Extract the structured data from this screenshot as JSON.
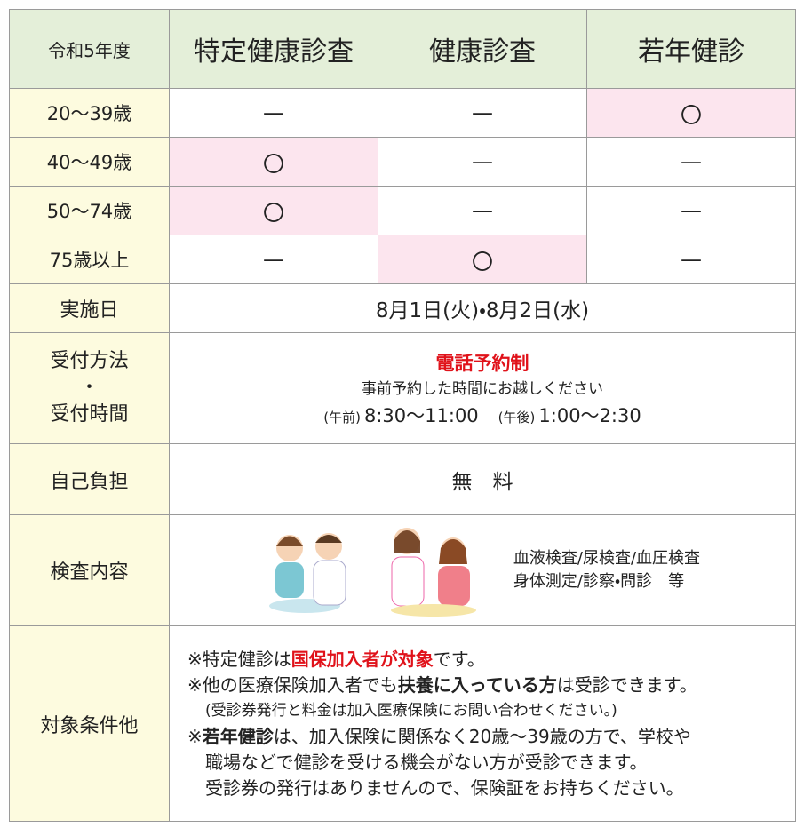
{
  "table": {
    "header": [
      "令和5年度",
      "特定健康診査",
      "健康診査",
      "若年健診"
    ],
    "age_rows": [
      {
        "label": "20〜39歳",
        "cells": [
          "—",
          "—",
          "〇"
        ],
        "highlight": [
          false,
          false,
          true
        ]
      },
      {
        "label": "40〜49歳",
        "cells": [
          "〇",
          "—",
          "—"
        ],
        "highlight": [
          true,
          false,
          false
        ]
      },
      {
        "label": "50〜74歳",
        "cells": [
          "〇",
          "—",
          "—"
        ],
        "highlight": [
          true,
          false,
          false
        ]
      },
      {
        "label": "75歳以上",
        "cells": [
          "—",
          "〇",
          "—"
        ],
        "highlight": [
          false,
          true,
          false
        ]
      }
    ],
    "date": {
      "label": "実施日",
      "text": "8月1日(火)・8月2日(水)"
    },
    "reception": {
      "label": [
        "受付方法",
        "・",
        "受付時間"
      ],
      "title": "電話予約制",
      "note": "事前予約した時間にお越しください",
      "times": [
        {
          "tag": "(午前)",
          "time": "8:30〜11:00"
        },
        {
          "tag": "(午後)",
          "time": "1:00〜2:30"
        }
      ]
    },
    "cost": {
      "label": "自己負担",
      "text": "無　料"
    },
    "exam": {
      "label": "検査内容",
      "items": [
        "血液検査/尿検査/血圧検査",
        "身体測定/診察・問診　等"
      ]
    },
    "conditions": {
      "label": "対象条件他",
      "lines": [
        {
          "parts": [
            {
              "text": "※特定健診は"
            },
            {
              "text": "国保加入者が対象",
              "style": "red"
            },
            {
              "text": "です。"
            }
          ]
        },
        {
          "parts": [
            {
              "text": "※他の医療保険加入者でも"
            },
            {
              "text": "扶養に入っている方",
              "style": "bold"
            },
            {
              "text": "は受診できます。"
            }
          ]
        },
        {
          "parts": [
            {
              "text": "(受診券発行と料金は加入医療保険にお問い合わせください。)"
            }
          ],
          "indent": true,
          "small": true
        },
        {
          "parts": [
            {
              "text": "※"
            },
            {
              "text": "若年健診",
              "style": "bold"
            },
            {
              "text": "は、加入保険に関係なく20歳〜39歳の方で、学校や"
            }
          ]
        },
        {
          "parts": [
            {
              "text": "職場などで健診を受ける機会がない方が受診できます。"
            }
          ],
          "indent": true
        },
        {
          "parts": [
            {
              "text": "受診券の発行はありませんので、保険証をお持ちください。"
            }
          ],
          "indent": true
        }
      ]
    }
  }
}
